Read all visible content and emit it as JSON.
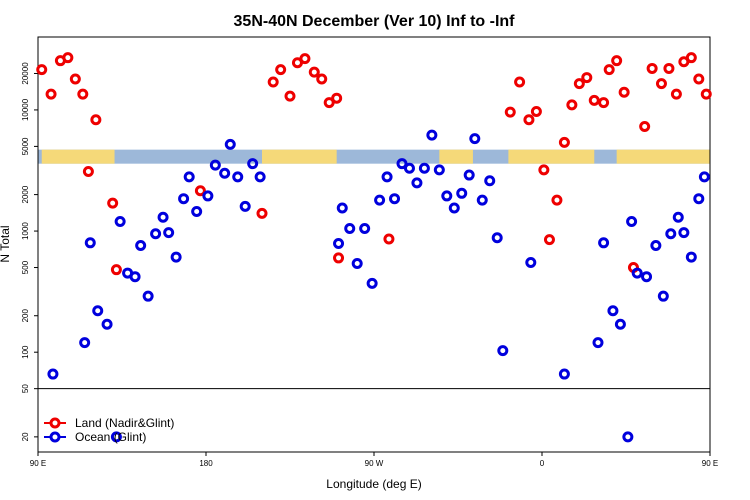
{
  "chart_data": {
    "type": "scatter",
    "title": "35N-40N December (Ver 10)   Inf to -Inf",
    "xlabel": "Longitude (deg E)",
    "ylabel": "N Total",
    "x_scale": "linear",
    "y_scale": "log",
    "xlim": [
      90,
      450
    ],
    "ylim": [
      15,
      40000
    ],
    "grid": false,
    "legend_position": "bottom-left",
    "x_ticks": [
      {
        "value": 90,
        "label": "90 E"
      },
      {
        "value": 180,
        "label": "180"
      },
      {
        "value": 270,
        "label": "90 W"
      },
      {
        "value": 360,
        "label": "0"
      },
      {
        "value": 450,
        "label": "90 E"
      },
      {
        "value": 540,
        "label": "180"
      }
    ],
    "y_ticks": [
      {
        "value": 20,
        "label": "20"
      },
      {
        "value": 50,
        "label": "50"
      },
      {
        "value": 100,
        "label": "100"
      },
      {
        "value": 200,
        "label": "200"
      },
      {
        "value": 500,
        "label": "500"
      },
      {
        "value": 1000,
        "label": "1000"
      },
      {
        "value": 2000,
        "label": "2000"
      },
      {
        "value": 5000,
        "label": "5000"
      },
      {
        "value": 10000,
        "label": "10000"
      },
      {
        "value": 20000,
        "label": "20000"
      }
    ],
    "divider_value": 50,
    "series": [
      {
        "name": "Land (Nadir&Glint)",
        "color": "#ee0000",
        "points": [
          [
            92,
            21500
          ],
          [
            97,
            13500
          ],
          [
            102,
            25500
          ],
          [
            106,
            27000
          ],
          [
            110,
            18000
          ],
          [
            114,
            13500
          ],
          [
            117,
            3100
          ],
          [
            121,
            8300
          ],
          [
            130,
            1700
          ],
          [
            132,
            480
          ],
          [
            177,
            2150
          ],
          [
            210,
            1400
          ],
          [
            216,
            17000
          ],
          [
            220,
            21500
          ],
          [
            225,
            13000
          ],
          [
            229,
            24500
          ],
          [
            233,
            26500
          ],
          [
            238,
            20500
          ],
          [
            242,
            18000
          ],
          [
            246,
            11500
          ],
          [
            250,
            12500
          ],
          [
            251,
            600
          ],
          [
            278,
            860
          ],
          [
            343,
            9600
          ],
          [
            348,
            17000
          ],
          [
            353,
            8300
          ],
          [
            357,
            9700
          ],
          [
            361,
            3200
          ],
          [
            364,
            850
          ],
          [
            368,
            1800
          ],
          [
            372,
            5400
          ],
          [
            376,
            11000
          ],
          [
            380,
            16500
          ],
          [
            384,
            18500
          ],
          [
            388,
            12000
          ],
          [
            393,
            11500
          ],
          [
            396,
            21500
          ],
          [
            400,
            25500
          ],
          [
            404,
            14000
          ],
          [
            409,
            500
          ],
          [
            415,
            7300
          ],
          [
            419,
            22000
          ],
          [
            424,
            16500
          ],
          [
            428,
            22000
          ],
          [
            432,
            13500
          ],
          [
            436,
            25000
          ],
          [
            440,
            27000
          ],
          [
            444,
            18000
          ],
          [
            448,
            13500
          ],
          [
            451,
            3100
          ],
          [
            455,
            8300
          ],
          [
            464,
            1700
          ],
          [
            466,
            480
          ]
        ]
      },
      {
        "name": "Ocean (Glint)",
        "color": "#0000dd",
        "points": [
          [
            98,
            66
          ],
          [
            115,
            120
          ],
          [
            118,
            800
          ],
          [
            122,
            220
          ],
          [
            127,
            170
          ],
          [
            132,
            20
          ],
          [
            134,
            1200
          ],
          [
            138,
            450
          ],
          [
            142,
            420
          ],
          [
            145,
            760
          ],
          [
            149,
            290
          ],
          [
            153,
            950
          ],
          [
            157,
            1300
          ],
          [
            160,
            970
          ],
          [
            164,
            610
          ],
          [
            168,
            1850
          ],
          [
            171,
            2800
          ],
          [
            175,
            1450
          ],
          [
            181,
            1950
          ],
          [
            185,
            3500
          ],
          [
            190,
            3000
          ],
          [
            193,
            5200
          ],
          [
            197,
            2800
          ],
          [
            201,
            1600
          ],
          [
            205,
            3600
          ],
          [
            209,
            2800
          ],
          [
            251,
            790
          ],
          [
            253,
            1550
          ],
          [
            257,
            1050
          ],
          [
            261,
            540
          ],
          [
            265,
            1050
          ],
          [
            269,
            370
          ],
          [
            273,
            1800
          ],
          [
            277,
            2800
          ],
          [
            281,
            1850
          ],
          [
            285,
            3600
          ],
          [
            289,
            3300
          ],
          [
            293,
            2500
          ],
          [
            297,
            3300
          ],
          [
            301,
            6200
          ],
          [
            305,
            3200
          ],
          [
            309,
            1950
          ],
          [
            313,
            1550
          ],
          [
            317,
            2050
          ],
          [
            321,
            2900
          ],
          [
            324,
            5800
          ],
          [
            328,
            1800
          ],
          [
            332,
            2600
          ],
          [
            336,
            880
          ],
          [
            339,
            103
          ],
          [
            354,
            550
          ],
          [
            372,
            66
          ],
          [
            390,
            120
          ],
          [
            393,
            800
          ],
          [
            398,
            220
          ],
          [
            402,
            170
          ],
          [
            406,
            20
          ],
          [
            408,
            1200
          ],
          [
            411,
            450
          ],
          [
            416,
            420
          ],
          [
            421,
            760
          ],
          [
            425,
            290
          ],
          [
            429,
            950
          ],
          [
            433,
            1300
          ],
          [
            436,
            970
          ],
          [
            440,
            610
          ],
          [
            444,
            1850
          ],
          [
            447,
            2800
          ],
          [
            451,
            1450
          ]
        ]
      }
    ],
    "land_sea_strip": {
      "y_range": [
        3600,
        4700
      ],
      "ocean_color": "#9db8d9",
      "land_color": "#f5d979",
      "land_segments_lon": [
        [
          92,
          131
        ],
        [
          210,
          250
        ],
        [
          305,
          323
        ],
        [
          342,
          388
        ],
        [
          400,
          466
        ]
      ]
    }
  }
}
